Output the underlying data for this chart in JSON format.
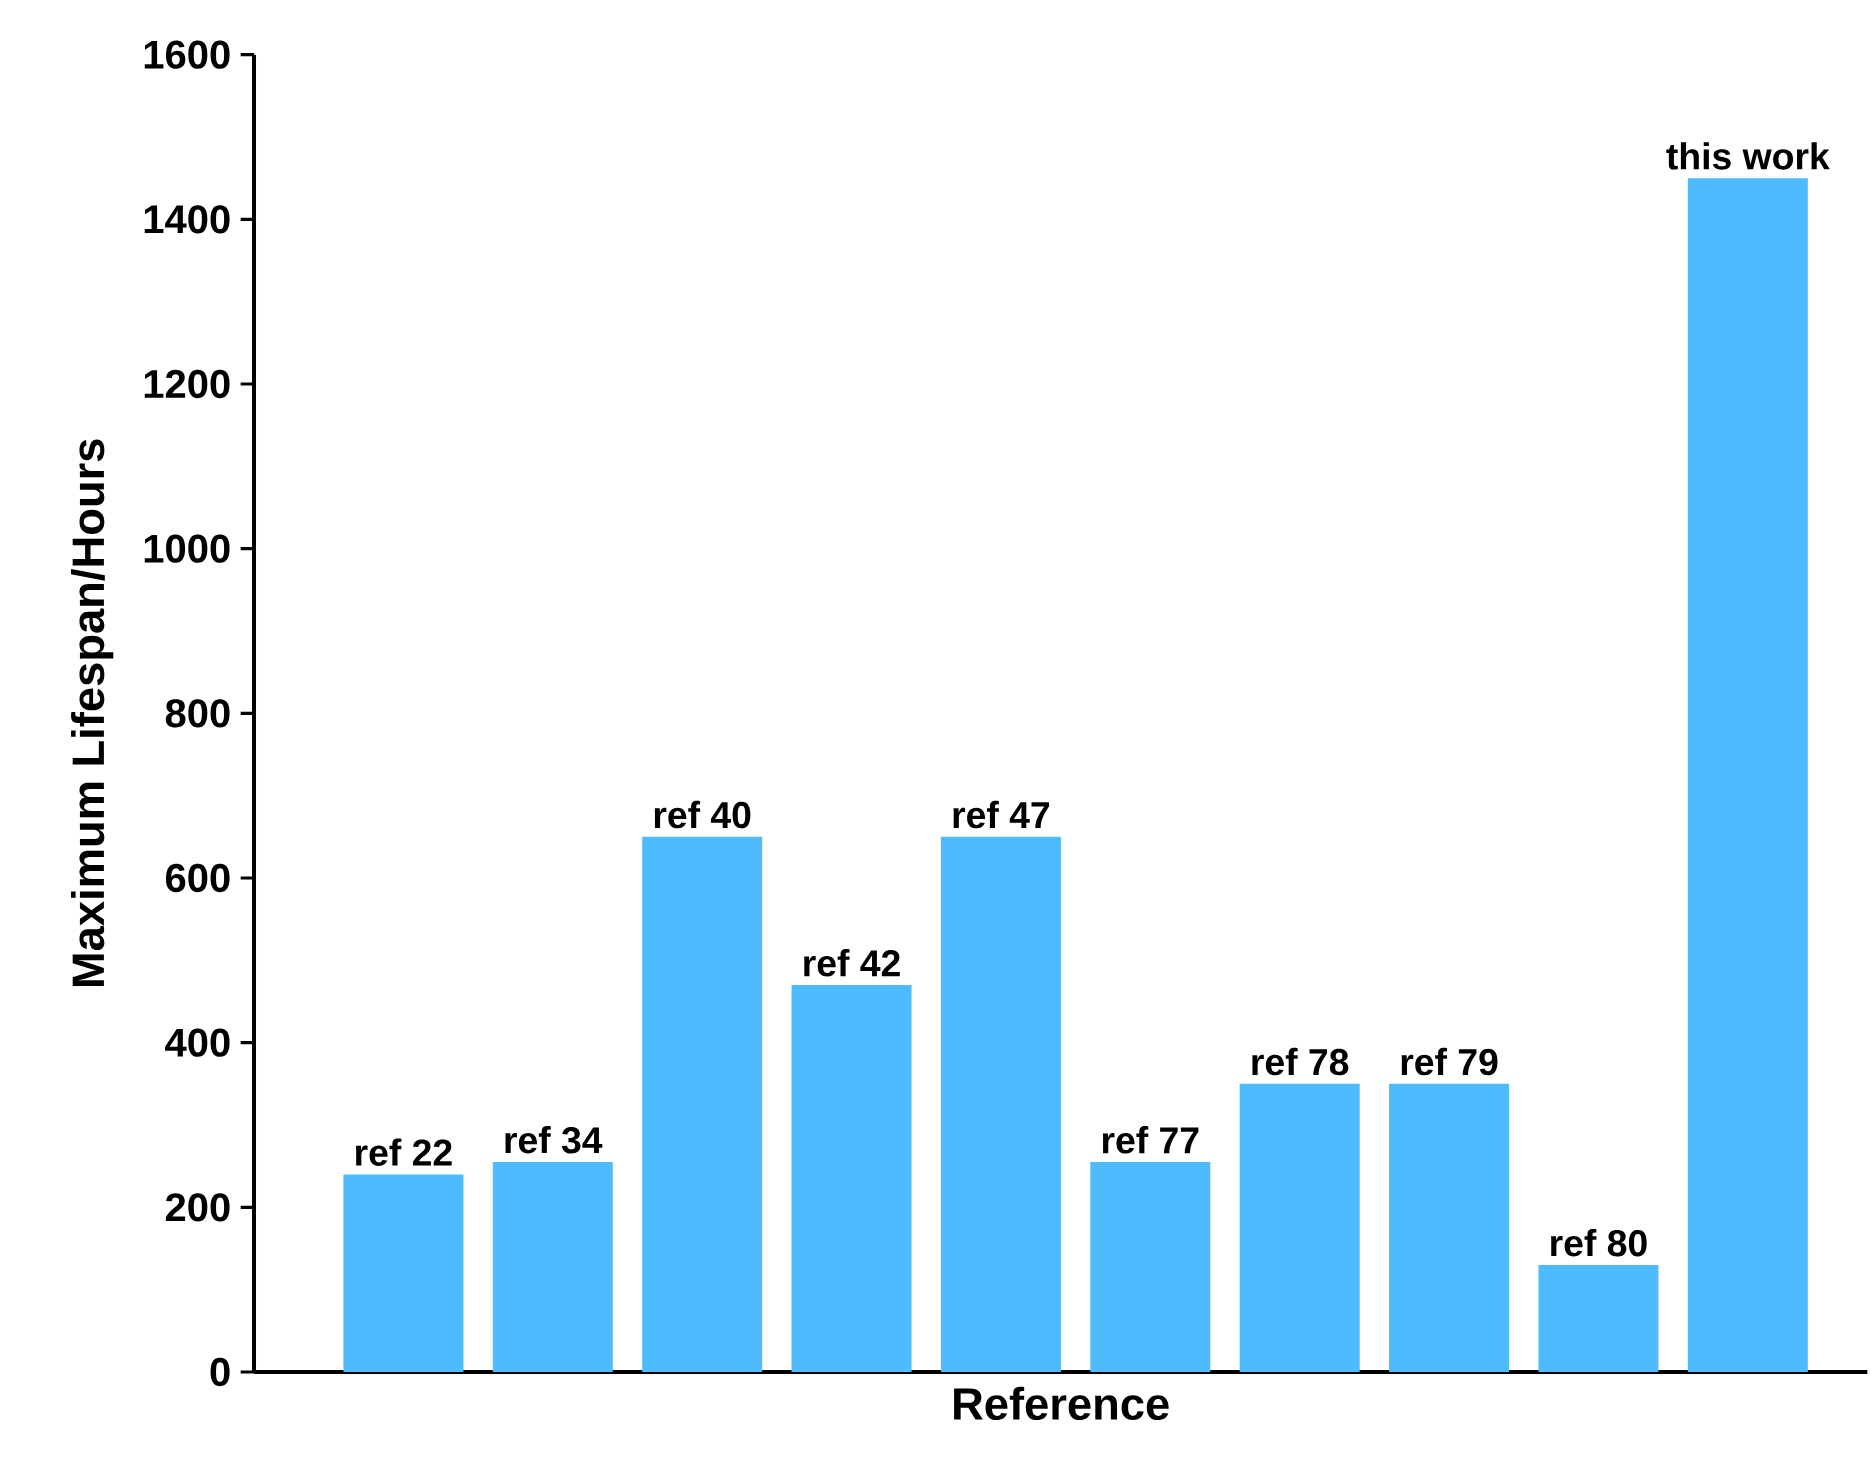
{
  "chart_data": {
    "type": "bar",
    "xlabel": "Reference",
    "ylabel": "Maximum Lifespan/Hours",
    "categories": [
      "ref 22",
      "ref 34",
      "ref 40",
      "ref 42",
      "ref 47",
      "ref 77",
      "ref 78",
      "ref 79",
      "ref 80",
      "this work"
    ],
    "values": [
      240,
      255,
      650,
      470,
      650,
      255,
      350,
      350,
      130,
      1450
    ],
    "color": "#4fbbff",
    "ylim": [
      0,
      1600
    ],
    "yticks": [
      0,
      200,
      400,
      600,
      800,
      1000,
      1200,
      1400,
      1600
    ]
  }
}
